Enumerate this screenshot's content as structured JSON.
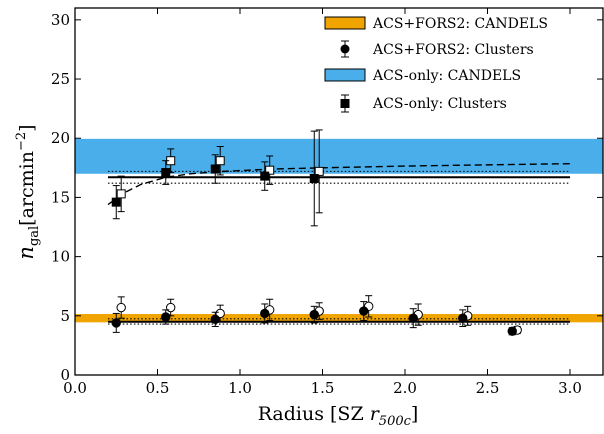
{
  "chart_data": {
    "type": "scatter",
    "xlabel": "Radius [SZ r_500c]",
    "xlabel_main": "Radius [SZ ",
    "xlabel_sym": "r",
    "xlabel_sub": "500c",
    "xlabel_close": "]",
    "ylabel": "n_gal [arcmin^-2]",
    "ylabel_sym": "n",
    "ylabel_sub": "gal",
    "ylabel_unit": "[arcmin",
    "ylabel_sup": "−2",
    "ylabel_close": "]",
    "xlim": [
      0.0,
      3.2
    ],
    "ylim": [
      0,
      31
    ],
    "x_ticks": [
      0.0,
      0.5,
      1.0,
      1.5,
      2.0,
      2.5,
      3.0
    ],
    "x_tick_labels": [
      "0.0",
      "0.5",
      "1.0",
      "1.5",
      "2.0",
      "2.5",
      "3.0"
    ],
    "y_ticks": [
      0,
      5,
      10,
      15,
      20,
      25,
      30
    ],
    "y_tick_labels": [
      "0",
      "5",
      "10",
      "15",
      "20",
      "25",
      "30"
    ],
    "grid": false,
    "legend_position": "top-right",
    "legend": [
      {
        "label": "ACS+FORS2: CANDELS",
        "kind": "band",
        "color": "#f0a400"
      },
      {
        "label": "ACS+FORS2: Clusters",
        "kind": "circle"
      },
      {
        "label": "ACS-only: CANDELS",
        "kind": "band",
        "color": "#4aaeea"
      },
      {
        "label": "ACS-only: Clusters",
        "kind": "square"
      }
    ],
    "bands": [
      {
        "name": "ACS-only: CANDELS",
        "ymin": 17.0,
        "ymax": 19.95,
        "color": "#4aaeea"
      },
      {
        "name": "ACS+FORS2: CANDELS",
        "ymin": 4.45,
        "ymax": 5.15,
        "color": "#f0a400"
      }
    ],
    "series": [
      {
        "name": "ACS-only: Clusters",
        "marker": "square",
        "filled": [
          {
            "x": 0.25,
            "y": 14.6,
            "yerr": 1.4
          },
          {
            "x": 0.55,
            "y": 17.1,
            "yerr": 1.0
          },
          {
            "x": 0.85,
            "y": 17.4,
            "yerr": 1.2
          },
          {
            "x": 1.15,
            "y": 16.8,
            "yerr": 1.2
          },
          {
            "x": 1.45,
            "y": 16.6,
            "yerr": 4.0
          }
        ],
        "open": [
          {
            "x": 0.28,
            "y": 15.3,
            "yerr": 1.5
          },
          {
            "x": 0.58,
            "y": 18.1,
            "yerr": 1.0
          },
          {
            "x": 0.88,
            "y": 18.1,
            "yerr": 1.2
          },
          {
            "x": 1.18,
            "y": 17.3,
            "yerr": 1.2
          },
          {
            "x": 1.48,
            "y": 17.2,
            "yerr": 3.5
          }
        ],
        "mean_line": {
          "x": [
            0.2,
            3.0
          ],
          "y": 16.7
        },
        "dotted_lines": {
          "x": [
            0.2,
            3.0
          ],
          "y": [
            16.2,
            17.2
          ]
        },
        "dashed_model": {
          "x": [
            0.2,
            0.3,
            0.4,
            0.55,
            0.7,
            0.9,
            1.2,
            1.5,
            2.0,
            2.5,
            3.0
          ],
          "y": [
            14.4,
            15.4,
            16.1,
            16.7,
            17.0,
            17.2,
            17.4,
            17.5,
            17.65,
            17.75,
            17.85
          ]
        }
      },
      {
        "name": "ACS+FORS2: Clusters",
        "marker": "circle",
        "filled": [
          {
            "x": 0.25,
            "y": 4.4,
            "yerr": 0.8
          },
          {
            "x": 0.55,
            "y": 4.9,
            "yerr": 0.6
          },
          {
            "x": 0.85,
            "y": 4.7,
            "yerr": 0.6
          },
          {
            "x": 1.15,
            "y": 5.2,
            "yerr": 0.8
          },
          {
            "x": 1.45,
            "y": 5.1,
            "yerr": 0.7
          },
          {
            "x": 1.75,
            "y": 5.4,
            "yerr": 0.8
          },
          {
            "x": 2.05,
            "y": 4.8,
            "yerr": 0.8
          },
          {
            "x": 2.35,
            "y": 4.8,
            "yerr": 0.7
          },
          {
            "x": 2.65,
            "y": 3.7,
            "yerr": 0.3
          }
        ],
        "open": [
          {
            "x": 0.28,
            "y": 5.7,
            "yerr": 0.9
          },
          {
            "x": 0.58,
            "y": 5.7,
            "yerr": 0.7
          },
          {
            "x": 0.88,
            "y": 5.2,
            "yerr": 0.7
          },
          {
            "x": 1.18,
            "y": 5.5,
            "yerr": 0.9
          },
          {
            "x": 1.48,
            "y": 5.4,
            "yerr": 0.7
          },
          {
            "x": 1.78,
            "y": 5.8,
            "yerr": 0.9
          },
          {
            "x": 2.08,
            "y": 5.1,
            "yerr": 0.9
          },
          {
            "x": 2.38,
            "y": 5.0,
            "yerr": 0.8
          },
          {
            "x": 2.68,
            "y": 3.8,
            "yerr": 0.3
          }
        ],
        "mean_line": {
          "x": [
            0.2,
            3.0
          ],
          "y": 4.5
        },
        "dotted_lines": {
          "x": [
            0.2,
            3.0
          ],
          "y": [
            4.3,
            4.75
          ]
        }
      }
    ]
  }
}
